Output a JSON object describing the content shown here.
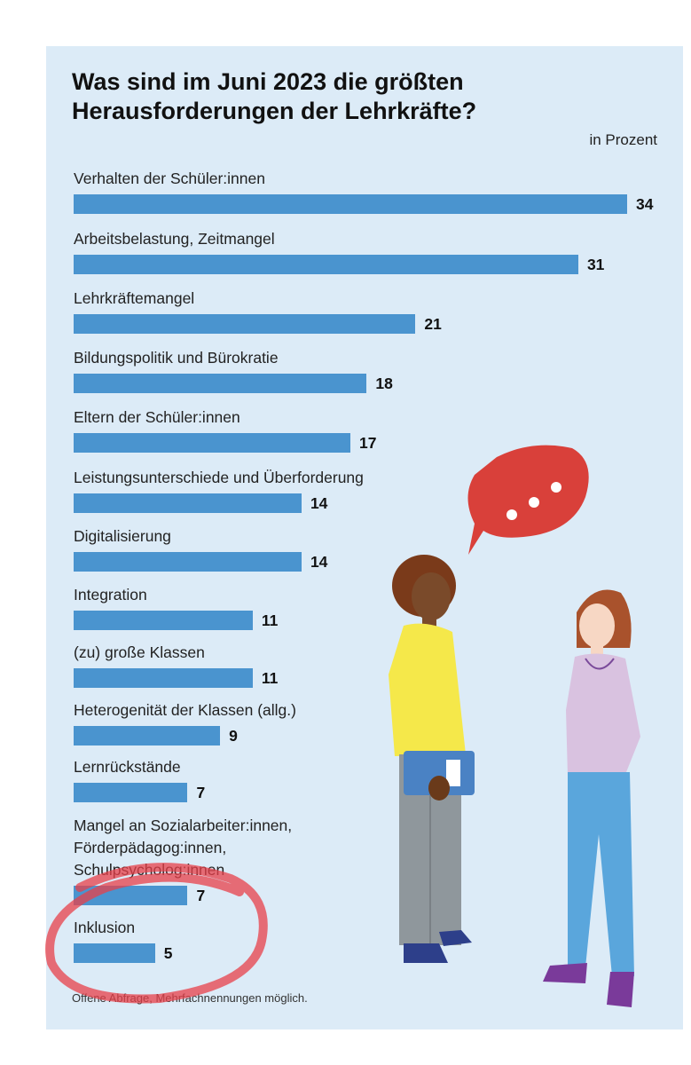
{
  "chart_data": {
    "type": "bar",
    "orientation": "horizontal",
    "title": "Was sind im Juni 2023 die größten Herausforderungen der Lehrkräfte?",
    "unit_label": "in Prozent",
    "categories": [
      "Verhalten der Schüler:innen",
      "Arbeitsbelastung, Zeitmangel",
      "Lehrkräftemangel",
      "Bildungspolitik und Bürokratie",
      "Eltern der Schüler:innen",
      "Leistungsunterschiede und Überforderung",
      "Digitalisierung",
      "Integration",
      "(zu) große Klassen",
      "Heterogenität der Klassen (allg.)",
      "Lernrückstände",
      "Mangel an Sozialarbeiter:innen,\nFörderpädagog:innen,\nSchulpsycholog:innen",
      "Inklusion"
    ],
    "values": [
      34,
      31,
      21,
      18,
      17,
      14,
      14,
      11,
      11,
      9,
      7,
      7,
      5
    ],
    "color": "#4a94cf",
    "footnote": "Offene Abfrage, Mehrfachnennungen möglich."
  }
}
